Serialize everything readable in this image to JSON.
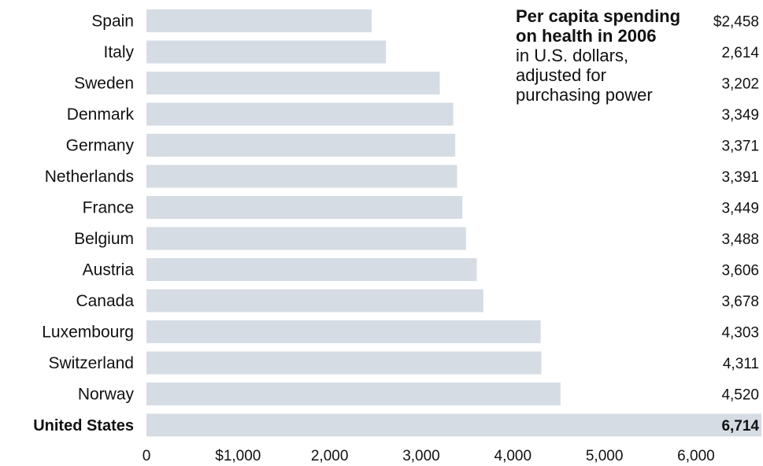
{
  "chart_data": {
    "type": "bar",
    "orientation": "horizontal",
    "title": "Per capita spending on health in 2006",
    "subtitle": "in U.S. dollars, adjusted for purchasing power",
    "categories": [
      "Spain",
      "Italy",
      "Sweden",
      "Denmark",
      "Germany",
      "Netherlands",
      "France",
      "Belgium",
      "Austria",
      "Canada",
      "Luxembourg",
      "Switzerland",
      "Norway",
      "United States"
    ],
    "values": [
      2458,
      2614,
      3202,
      3349,
      3371,
      3391,
      3449,
      3488,
      3606,
      3678,
      4303,
      4311,
      4520,
      6714
    ],
    "value_labels": [
      "$2,458",
      "2,614",
      "3,202",
      "3,349",
      "3,371",
      "3,391",
      "3,449",
      "3,488",
      "3,606",
      "3,678",
      "4,303",
      "4,311",
      "4,520",
      "6,714"
    ],
    "highlight_category": "United States",
    "xlim": [
      0,
      6714
    ],
    "x_ticks": [
      0,
      1000,
      2000,
      3000,
      4000,
      5000,
      6000
    ],
    "x_tick_labels": [
      "0",
      "$1,000",
      "2,000",
      "3,000",
      "4,000",
      "5,000",
      "6,000"
    ],
    "xlabel": "",
    "ylabel": "",
    "grid": false,
    "colors": {
      "bar": "#D5DCE3",
      "text": "#111111"
    }
  }
}
